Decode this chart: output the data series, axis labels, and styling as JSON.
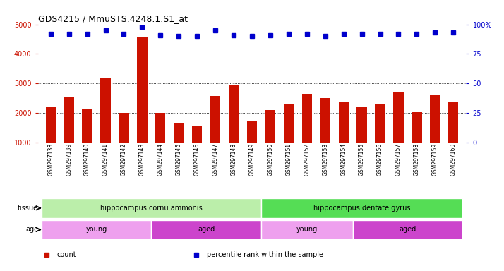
{
  "title": "GDS4215 / MmuSTS.4248.1.S1_at",
  "samples": [
    "GSM297138",
    "GSM297139",
    "GSM297140",
    "GSM297141",
    "GSM297142",
    "GSM297143",
    "GSM297144",
    "GSM297145",
    "GSM297146",
    "GSM297147",
    "GSM297148",
    "GSM297149",
    "GSM297150",
    "GSM297151",
    "GSM297152",
    "GSM297153",
    "GSM297154",
    "GSM297155",
    "GSM297156",
    "GSM297157",
    "GSM297158",
    "GSM297159",
    "GSM297160"
  ],
  "counts": [
    2200,
    2550,
    2150,
    3200,
    2000,
    4550,
    2000,
    1650,
    1550,
    2570,
    2950,
    1700,
    2100,
    2300,
    2650,
    2500,
    2350,
    2200,
    2300,
    2720,
    2050,
    2600,
    2380
  ],
  "percentiles": [
    92,
    92,
    92,
    95,
    92,
    98,
    91,
    90,
    90,
    95,
    91,
    90,
    91,
    92,
    92,
    90,
    92,
    92,
    92,
    92,
    92,
    93,
    93
  ],
  "bar_color": "#cc1100",
  "dot_color": "#0000cc",
  "ylim_left": [
    1000,
    5000
  ],
  "ylim_right": [
    0,
    100
  ],
  "yticks_left": [
    1000,
    2000,
    3000,
    4000,
    5000
  ],
  "yticks_right": [
    0,
    25,
    50,
    75,
    100
  ],
  "yright_labels": [
    "0",
    "25",
    "50",
    "75",
    "100%"
  ],
  "tissue_groups": [
    {
      "label": "hippocampus cornu ammonis",
      "start": 0,
      "end": 12,
      "color": "#bbeeaa"
    },
    {
      "label": "hippocampus dentate gyrus",
      "start": 12,
      "end": 23,
      "color": "#55dd55"
    }
  ],
  "age_groups": [
    {
      "label": "young",
      "start": 0,
      "end": 6,
      "color": "#eea0ee"
    },
    {
      "label": "aged",
      "start": 6,
      "end": 12,
      "color": "#cc44cc"
    },
    {
      "label": "young",
      "start": 12,
      "end": 17,
      "color": "#eea0ee"
    },
    {
      "label": "aged",
      "start": 17,
      "end": 23,
      "color": "#cc44cc"
    }
  ],
  "legend": [
    {
      "label": "count",
      "color": "#cc1100",
      "marker": "s"
    },
    {
      "label": "percentile rank within the sample",
      "color": "#0000cc",
      "marker": "s"
    }
  ],
  "background_color": "#ffffff",
  "grid_color": "#000000",
  "bar_width": 0.55
}
